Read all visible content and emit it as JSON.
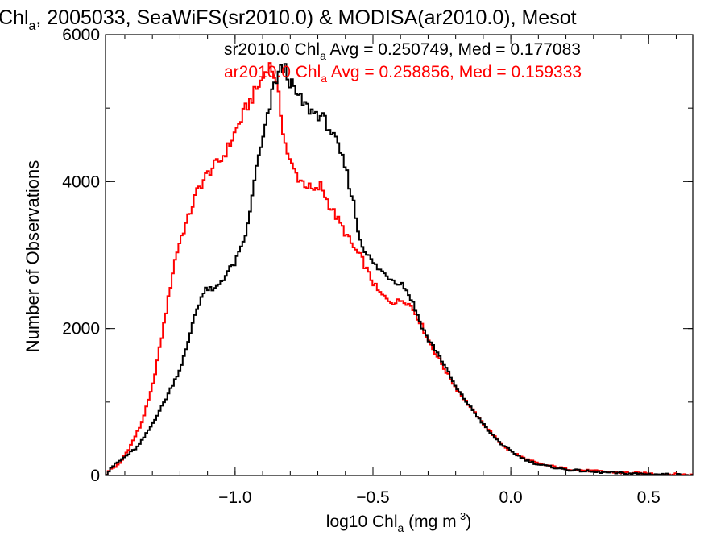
{
  "chart_data": {
    "type": "line",
    "title": {
      "pre": "Chl",
      "sub": "a",
      "post": ", 2005033, SeaWiFS(sr2010.0) & MODISA(ar2010.0), Mesot"
    },
    "xlabel": {
      "pre": "log10 Chl",
      "sub": "a",
      "mid": " (mg m",
      "sup": "-3",
      "post": ")"
    },
    "ylabel": "Number of Observations",
    "xlim": [
      -1.47,
      0.66
    ],
    "ylim": [
      0,
      6000
    ],
    "x_ticks": [
      -1.0,
      -0.5,
      0.0,
      0.5
    ],
    "x_tick_labels": [
      "−1.0",
      "−0.5",
      "0.0",
      "0.5"
    ],
    "y_ticks": [
      0,
      2000,
      4000,
      6000
    ],
    "y_tick_labels": [
      "0",
      "2000",
      "4000",
      "6000"
    ],
    "grid": false,
    "legend_position": "top-right",
    "annotations": [
      {
        "series": "sr2010.0",
        "color": "#000000",
        "pre": "sr2010.0 Chl",
        "sub": "a",
        "post": " Avg = 0.250749, Med = 0.177083"
      },
      {
        "series": "ar2010.0",
        "color": "#ff0000",
        "pre": "ar2010.0 Chl",
        "sub": "a",
        "post": " Avg = 0.258856, Med = 0.159333"
      }
    ],
    "series": [
      {
        "name": "sr2010.0",
        "color": "#000000",
        "points": [
          [
            -1.47,
            0
          ],
          [
            -1.45,
            110
          ],
          [
            -1.4,
            250
          ],
          [
            -1.35,
            400
          ],
          [
            -1.3,
            700
          ],
          [
            -1.25,
            1050
          ],
          [
            -1.2,
            1450
          ],
          [
            -1.17,
            1800
          ],
          [
            -1.15,
            2150
          ],
          [
            -1.12,
            2450
          ],
          [
            -1.1,
            2550
          ],
          [
            -1.08,
            2500
          ],
          [
            -1.05,
            2650
          ],
          [
            -1.02,
            2800
          ],
          [
            -1.0,
            2900
          ],
          [
            -0.98,
            3050
          ],
          [
            -0.95,
            3450
          ],
          [
            -0.93,
            4050
          ],
          [
            -0.9,
            4550
          ],
          [
            -0.88,
            4900
          ],
          [
            -0.86,
            5300
          ],
          [
            -0.84,
            5500
          ],
          [
            -0.82,
            5550
          ],
          [
            -0.8,
            5350
          ],
          [
            -0.78,
            5200
          ],
          [
            -0.75,
            5050
          ],
          [
            -0.72,
            4950
          ],
          [
            -0.69,
            4900
          ],
          [
            -0.66,
            4750
          ],
          [
            -0.63,
            4500
          ],
          [
            -0.6,
            4200
          ],
          [
            -0.57,
            3700
          ],
          [
            -0.55,
            3250
          ],
          [
            -0.52,
            3000
          ],
          [
            -0.49,
            2850
          ],
          [
            -0.46,
            2750
          ],
          [
            -0.42,
            2650
          ],
          [
            -0.39,
            2600
          ],
          [
            -0.36,
            2400
          ],
          [
            -0.33,
            2100
          ],
          [
            -0.3,
            1850
          ],
          [
            -0.27,
            1700
          ],
          [
            -0.24,
            1500
          ],
          [
            -0.2,
            1200
          ],
          [
            -0.16,
            1000
          ],
          [
            -0.12,
            800
          ],
          [
            -0.08,
            600
          ],
          [
            -0.04,
            450
          ],
          [
            0.0,
            330
          ],
          [
            0.05,
            220
          ],
          [
            0.1,
            150
          ],
          [
            0.2,
            80
          ],
          [
            0.3,
            50
          ],
          [
            0.4,
            30
          ],
          [
            0.5,
            20
          ],
          [
            0.6,
            10
          ],
          [
            0.66,
            5
          ]
        ]
      },
      {
        "name": "ar2010.0",
        "color": "#ff0000",
        "points": [
          [
            -1.47,
            0
          ],
          [
            -1.45,
            90
          ],
          [
            -1.42,
            150
          ],
          [
            -1.38,
            400
          ],
          [
            -1.34,
            700
          ],
          [
            -1.3,
            1200
          ],
          [
            -1.27,
            1800
          ],
          [
            -1.24,
            2450
          ],
          [
            -1.22,
            2900
          ],
          [
            -1.2,
            3200
          ],
          [
            -1.17,
            3500
          ],
          [
            -1.14,
            3850
          ],
          [
            -1.11,
            4050
          ],
          [
            -1.08,
            4200
          ],
          [
            -1.05,
            4300
          ],
          [
            -1.02,
            4500
          ],
          [
            -0.99,
            4750
          ],
          [
            -0.96,
            5000
          ],
          [
            -0.93,
            5200
          ],
          [
            -0.9,
            5400
          ],
          [
            -0.88,
            5600
          ],
          [
            -0.86,
            5500
          ],
          [
            -0.84,
            5100
          ],
          [
            -0.82,
            4550
          ],
          [
            -0.8,
            4250
          ],
          [
            -0.77,
            4050
          ],
          [
            -0.74,
            3950
          ],
          [
            -0.71,
            3850
          ],
          [
            -0.69,
            3950
          ],
          [
            -0.66,
            3700
          ],
          [
            -0.63,
            3500
          ],
          [
            -0.6,
            3300
          ],
          [
            -0.57,
            3100
          ],
          [
            -0.54,
            2950
          ],
          [
            -0.51,
            2700
          ],
          [
            -0.48,
            2500
          ],
          [
            -0.45,
            2400
          ],
          [
            -0.42,
            2350
          ],
          [
            -0.39,
            2400
          ],
          [
            -0.36,
            2300
          ],
          [
            -0.33,
            2100
          ],
          [
            -0.3,
            1850
          ],
          [
            -0.27,
            1650
          ],
          [
            -0.24,
            1450
          ],
          [
            -0.2,
            1200
          ],
          [
            -0.16,
            1000
          ],
          [
            -0.12,
            800
          ],
          [
            -0.08,
            620
          ],
          [
            -0.04,
            450
          ],
          [
            0.0,
            330
          ],
          [
            0.05,
            230
          ],
          [
            0.1,
            160
          ],
          [
            0.2,
            90
          ],
          [
            0.3,
            60
          ],
          [
            0.4,
            40
          ],
          [
            0.5,
            25
          ],
          [
            0.6,
            15
          ],
          [
            0.66,
            8
          ]
        ]
      }
    ]
  }
}
